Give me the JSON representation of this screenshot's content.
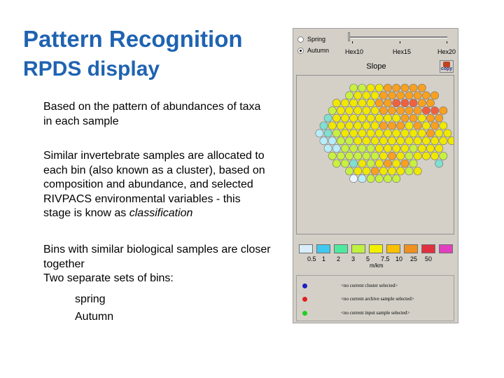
{
  "slide": {
    "title": "Pattern Recognition",
    "subtitle": "RPDS display",
    "para1": "Based on the pattern of abundances of taxa in each sample",
    "para2_main": "Similar invertebrate samples are allocated to each bin (also known as a cluster), based on composition and abundance, and selected RIVPACS environmental variables  - this stage is know as ",
    "para2_em": "classification",
    "para3": "Bins with similar biological samples are closer together",
    "para4": "Two separate sets of bins:",
    "item1": "spring",
    "item2": "Autumn"
  },
  "app": {
    "season_options": [
      "Spring",
      "Autumn"
    ],
    "selected_season": "Autumn",
    "hex_labels": [
      "Hex10",
      "Hex15",
      "Hex20"
    ],
    "map_title": "Slope",
    "copy_label": "copy",
    "legend_values": [
      "0.5",
      "1",
      "2",
      "3",
      "5",
      "7.5",
      "10",
      "25",
      "50"
    ],
    "legend_colors": [
      "#d8eefa",
      "#40c8f0",
      "#50e8a0",
      "#c0f040",
      "#f0f000",
      "#f8c000",
      "#f09020",
      "#e03040",
      "#e040c0"
    ],
    "legend_unit": "m/km",
    "selection_rows": [
      {
        "text": "<no current cluster selected>",
        "color": "#2020c0"
      },
      {
        "text": "<no current archive sample selected>",
        "color": "#e02020"
      },
      {
        "text": "<no current input sample selected>",
        "color": "#20d020"
      }
    ],
    "hex_grid_colors": [
      "                  ",
      "                  ",
      "      GGYYOOOOO   ",
      "     GYYYOOOOOOO  ",
      "    YYYYYOORRROO  ",
      "   GYYYYYOOOOORRO ",
      "   LYYYYYYYYOOYOO ",
      "  LYYYYYYOOOYOYOY ",
      "  CLGYYYYYYYYYYOYY",
      "  CCGGYYYYYYYYYYYY",
      "   CCGGGGYYYYGYYY ",
      "   GGGGGGYOYGYYYG ",
      "    GGLYGYOYOG  L ",
      "     GYYOYYYGY    ",
      "      WCGGGG      "
    ]
  }
}
